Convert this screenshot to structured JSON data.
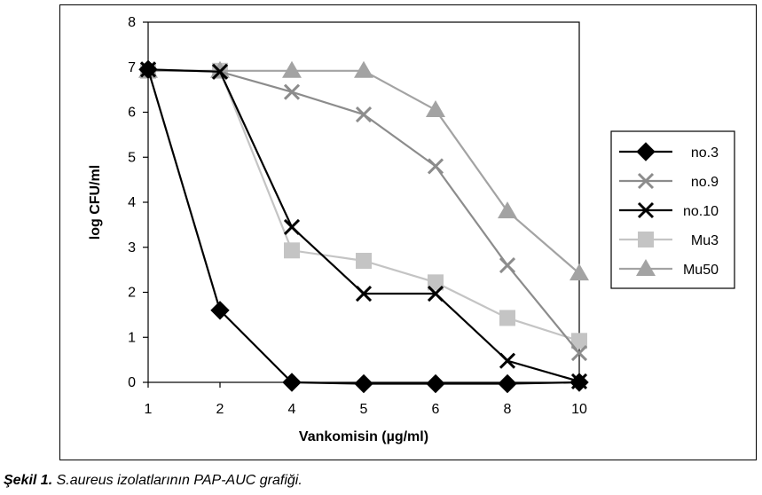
{
  "caption": {
    "label": "Şekil 1.",
    "text": "S.aureus izolatlarının PAP-AUC grafiği."
  },
  "chart_data": {
    "type": "line",
    "title": "",
    "xlabel": "Vankomisin (µg/ml)",
    "ylabel": "log CFU/ml",
    "categories": [
      "1",
      "2",
      "4",
      "5",
      "6",
      "8",
      "10"
    ],
    "ylim": [
      0,
      8
    ],
    "yticks": [
      "0",
      "1",
      "2",
      "3",
      "4",
      "5",
      "6",
      "7",
      "8"
    ],
    "grid": false,
    "legend_position": "right",
    "series": [
      {
        "name": "no.3",
        "marker": "diamond",
        "color": "#000000",
        "values": [
          6.95,
          1.6,
          0.0,
          -0.03,
          -0.03,
          -0.03,
          0.0
        ]
      },
      {
        "name": "no.9",
        "marker": "x",
        "color": "#8c8c8c",
        "values": [
          6.95,
          6.9,
          6.45,
          5.95,
          4.8,
          2.6,
          0.65
        ]
      },
      {
        "name": "no.10",
        "marker": "x",
        "color": "#000000",
        "values": [
          6.95,
          6.9,
          3.45,
          1.97,
          1.97,
          0.48,
          0.02
        ]
      },
      {
        "name": "Mu3",
        "marker": "square",
        "color": "#c4c4c4",
        "values": [
          6.92,
          6.92,
          2.93,
          2.7,
          2.22,
          1.43,
          0.92
        ]
      },
      {
        "name": "Mu50",
        "marker": "triangle",
        "color": "#a3a3a3",
        "values": [
          6.92,
          6.92,
          6.92,
          6.92,
          6.05,
          3.8,
          2.42
        ]
      }
    ]
  }
}
